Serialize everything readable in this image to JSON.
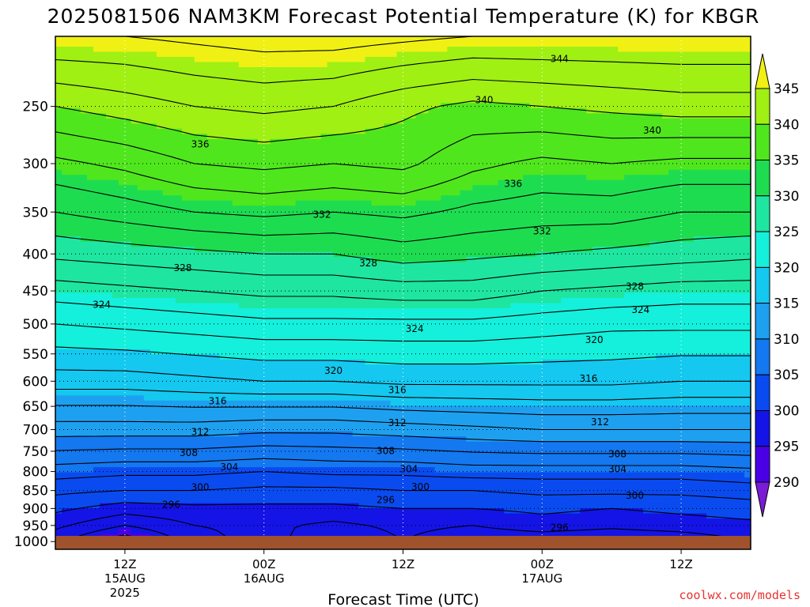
{
  "title": "2025081506 NAM3KM Forecast Potential Temperature (K) for KBGR",
  "credit": "coolwx.com/models",
  "chart_data": {
    "type": "heatmap",
    "title": "2025081506 NAM3KM Forecast Potential Temperature (K) for KBGR",
    "xlabel": "Forecast Time (UTC)",
    "ylabel": "",
    "x_ticks": [
      {
        "hour": 6,
        "lines": [
          "12Z",
          "15AUG",
          "2025"
        ]
      },
      {
        "hour": 18,
        "lines": [
          "00Z",
          "16AUG"
        ]
      },
      {
        "hour": 30,
        "lines": [
          "12Z"
        ]
      },
      {
        "hour": 42,
        "lines": [
          "00Z",
          "17AUG"
        ]
      },
      {
        "hour": 54,
        "lines": [
          "12Z"
        ]
      }
    ],
    "x_range_hours": [
      0,
      60
    ],
    "y_axis": "pressure (hPa), inverted log",
    "y_range": [
      1025,
      200
    ],
    "y_ticks": [
      250,
      300,
      350,
      400,
      450,
      500,
      550,
      600,
      650,
      700,
      750,
      800,
      850,
      900,
      950,
      1000
    ],
    "grid": true,
    "colorbar": {
      "levels": [
        290,
        295,
        300,
        305,
        310,
        315,
        320,
        325,
        330,
        335,
        340,
        345
      ],
      "colors": [
        "#7a1cd6",
        "#4a00e6",
        "#1414e6",
        "#0a4bf0",
        "#1478f0",
        "#1ea0f0",
        "#14c8f0",
        "#14f0dc",
        "#1ee6a0",
        "#1edc50",
        "#50e61e",
        "#a0f014",
        "#f0f014"
      ]
    },
    "profiles": [
      {
        "hour": 0,
        "levels": [
          [
            1000,
            296.5
          ],
          [
            950,
            298.5
          ],
          [
            900,
            300.5
          ],
          [
            850,
            302.5
          ],
          [
            800,
            305.0
          ],
          [
            700,
            311.0
          ],
          [
            600,
            317.0
          ],
          [
            500,
            322.0
          ],
          [
            450,
            325.0
          ],
          [
            400,
            328.5
          ],
          [
            350,
            332.0
          ],
          [
            300,
            335.5
          ],
          [
            250,
            340.0
          ],
          [
            200,
            346.0
          ]
        ]
      },
      {
        "hour": 6,
        "levels": [
          [
            1000,
            292.5
          ],
          [
            950,
            296.0
          ],
          [
            900,
            299.0
          ],
          [
            850,
            302.0
          ],
          [
            800,
            304.5
          ],
          [
            700,
            311.0
          ],
          [
            600,
            317.0
          ],
          [
            500,
            322.5
          ],
          [
            450,
            325.5
          ],
          [
            400,
            329.0
          ],
          [
            350,
            333.0
          ],
          [
            300,
            336.5
          ],
          [
            250,
            341.0
          ],
          [
            200,
            346.0
          ]
        ]
      },
      {
        "hour": 12,
        "levels": [
          [
            1000,
            297.0
          ],
          [
            950,
            298.0
          ],
          [
            900,
            299.5
          ],
          [
            850,
            302.0
          ],
          [
            800,
            304.5
          ],
          [
            700,
            311.0
          ],
          [
            600,
            317.5
          ],
          [
            500,
            323.0
          ],
          [
            450,
            326.0
          ],
          [
            400,
            329.5
          ],
          [
            350,
            334.0
          ],
          [
            300,
            338.0
          ],
          [
            250,
            342.0
          ],
          [
            200,
            346.5
          ]
        ]
      },
      {
        "hour": 18,
        "levels": [
          [
            1000,
            299.0
          ],
          [
            950,
            298.5
          ],
          [
            900,
            299.5
          ],
          [
            850,
            301.5
          ],
          [
            800,
            304.0
          ],
          [
            700,
            310.5
          ],
          [
            600,
            318.0
          ],
          [
            500,
            323.5
          ],
          [
            450,
            326.5
          ],
          [
            400,
            330.0
          ],
          [
            350,
            334.5
          ],
          [
            300,
            338.5
          ],
          [
            250,
            342.5
          ],
          [
            200,
            347.0
          ]
        ]
      },
      {
        "hour": 24,
        "levels": [
          [
            1000,
            296.0
          ],
          [
            950,
            297.5
          ],
          [
            900,
            299.5
          ],
          [
            850,
            301.5
          ],
          [
            800,
            304.5
          ],
          [
            700,
            310.5
          ],
          [
            600,
            318.0
          ],
          [
            500,
            323.5
          ],
          [
            450,
            326.5
          ],
          [
            400,
            330.0
          ],
          [
            350,
            334.0
          ],
          [
            300,
            338.0
          ],
          [
            250,
            342.0
          ],
          [
            200,
            347.0
          ]
        ]
      },
      {
        "hour": 30,
        "levels": [
          [
            1000,
            298.0
          ],
          [
            950,
            298.5
          ],
          [
            900,
            300.0
          ],
          [
            850,
            302.0
          ],
          [
            800,
            304.5
          ],
          [
            700,
            311.0
          ],
          [
            600,
            318.5
          ],
          [
            500,
            323.5
          ],
          [
            450,
            327.0
          ],
          [
            400,
            331.0
          ],
          [
            350,
            334.5
          ],
          [
            300,
            338.5
          ],
          [
            250,
            340.5
          ],
          [
            200,
            346.5
          ]
        ]
      },
      {
        "hour": 36,
        "levels": [
          [
            1000,
            296.5
          ],
          [
            950,
            298.0
          ],
          [
            900,
            300.0
          ],
          [
            850,
            302.0
          ],
          [
            800,
            305.0
          ],
          [
            700,
            311.5
          ],
          [
            600,
            318.5
          ],
          [
            500,
            323.5
          ],
          [
            450,
            327.0
          ],
          [
            400,
            330.5
          ],
          [
            350,
            333.5
          ],
          [
            300,
            336.5
          ],
          [
            250,
            339.5
          ],
          [
            200,
            346.0
          ]
        ]
      },
      {
        "hour": 42,
        "levels": [
          [
            1000,
            296.5
          ],
          [
            950,
            299.0
          ],
          [
            900,
            300.5
          ],
          [
            850,
            302.5
          ],
          [
            800,
            305.0
          ],
          [
            700,
            312.0
          ],
          [
            600,
            318.5
          ],
          [
            500,
            323.0
          ],
          [
            450,
            326.0
          ],
          [
            400,
            330.0
          ],
          [
            350,
            333.0
          ],
          [
            300,
            335.5
          ],
          [
            250,
            340.0
          ],
          [
            200,
            346.0
          ]
        ]
      },
      {
        "hour": 48,
        "levels": [
          [
            1000,
            296.0
          ],
          [
            950,
            298.5
          ],
          [
            900,
            300.0
          ],
          [
            850,
            302.5
          ],
          [
            800,
            305.0
          ],
          [
            700,
            312.0
          ],
          [
            600,
            318.5
          ],
          [
            500,
            322.5
          ],
          [
            450,
            325.5
          ],
          [
            400,
            329.5
          ],
          [
            350,
            333.0
          ],
          [
            300,
            336.0
          ],
          [
            250,
            340.5
          ],
          [
            200,
            346.0
          ]
        ]
      },
      {
        "hour": 54,
        "levels": [
          [
            1000,
            296.5
          ],
          [
            950,
            299.0
          ],
          [
            900,
            300.5
          ],
          [
            850,
            302.5
          ],
          [
            800,
            305.0
          ],
          [
            700,
            312.0
          ],
          [
            600,
            318.0
          ],
          [
            500,
            322.5
          ],
          [
            450,
            325.0
          ],
          [
            400,
            329.0
          ],
          [
            350,
            332.0
          ],
          [
            300,
            335.5
          ],
          [
            250,
            341.0
          ],
          [
            200,
            346.0
          ]
        ]
      },
      {
        "hour": 60,
        "levels": [
          [
            1000,
            298.0
          ],
          [
            950,
            299.5
          ],
          [
            900,
            301.0
          ],
          [
            850,
            303.0
          ],
          [
            800,
            305.5
          ],
          [
            700,
            312.0
          ],
          [
            600,
            318.0
          ],
          [
            500,
            322.5
          ],
          [
            450,
            325.0
          ],
          [
            400,
            328.5
          ],
          [
            350,
            332.0
          ],
          [
            300,
            335.5
          ],
          [
            250,
            341.0
          ],
          [
            200,
            346.0
          ]
        ]
      }
    ],
    "contour_labels": [
      {
        "value": 344,
        "hour": 43.5,
        "pressure": 215
      },
      {
        "value": 340,
        "hour": 37.0,
        "pressure": 245
      },
      {
        "value": 340,
        "hour": 51.5,
        "pressure": 270
      },
      {
        "value": 336,
        "hour": 12.5,
        "pressure": 282
      },
      {
        "value": 336,
        "hour": 39.5,
        "pressure": 320
      },
      {
        "value": 332,
        "hour": 23.0,
        "pressure": 353
      },
      {
        "value": 332,
        "hour": 42.0,
        "pressure": 372
      },
      {
        "value": 328,
        "hour": 11.0,
        "pressure": 418
      },
      {
        "value": 328,
        "hour": 27.0,
        "pressure": 412
      },
      {
        "value": 328,
        "hour": 50.0,
        "pressure": 444
      },
      {
        "value": 324,
        "hour": 4.0,
        "pressure": 470
      },
      {
        "value": 324,
        "hour": 31.0,
        "pressure": 508
      },
      {
        "value": 324,
        "hour": 50.5,
        "pressure": 478
      },
      {
        "value": 320,
        "hour": 24.0,
        "pressure": 580
      },
      {
        "value": 320,
        "hour": 46.5,
        "pressure": 526
      },
      {
        "value": 316,
        "hour": 14.0,
        "pressure": 639
      },
      {
        "value": 316,
        "hour": 29.5,
        "pressure": 617
      },
      {
        "value": 316,
        "hour": 46.0,
        "pressure": 595
      },
      {
        "value": 312,
        "hour": 12.5,
        "pressure": 705
      },
      {
        "value": 312,
        "hour": 29.5,
        "pressure": 685
      },
      {
        "value": 312,
        "hour": 47.0,
        "pressure": 683
      },
      {
        "value": 308,
        "hour": 11.5,
        "pressure": 754
      },
      {
        "value": 308,
        "hour": 28.5,
        "pressure": 749
      },
      {
        "value": 308,
        "hour": 48.5,
        "pressure": 757
      },
      {
        "value": 304,
        "hour": 15.0,
        "pressure": 789
      },
      {
        "value": 304,
        "hour": 30.5,
        "pressure": 794
      },
      {
        "value": 304,
        "hour": 48.5,
        "pressure": 794
      },
      {
        "value": 300,
        "hour": 12.5,
        "pressure": 841
      },
      {
        "value": 300,
        "hour": 31.5,
        "pressure": 840
      },
      {
        "value": 300,
        "hour": 50.0,
        "pressure": 864
      },
      {
        "value": 296,
        "hour": 10.0,
        "pressure": 889
      },
      {
        "value": 296,
        "hour": 28.5,
        "pressure": 876
      },
      {
        "value": 296,
        "hour": 43.5,
        "pressure": 957
      }
    ]
  }
}
